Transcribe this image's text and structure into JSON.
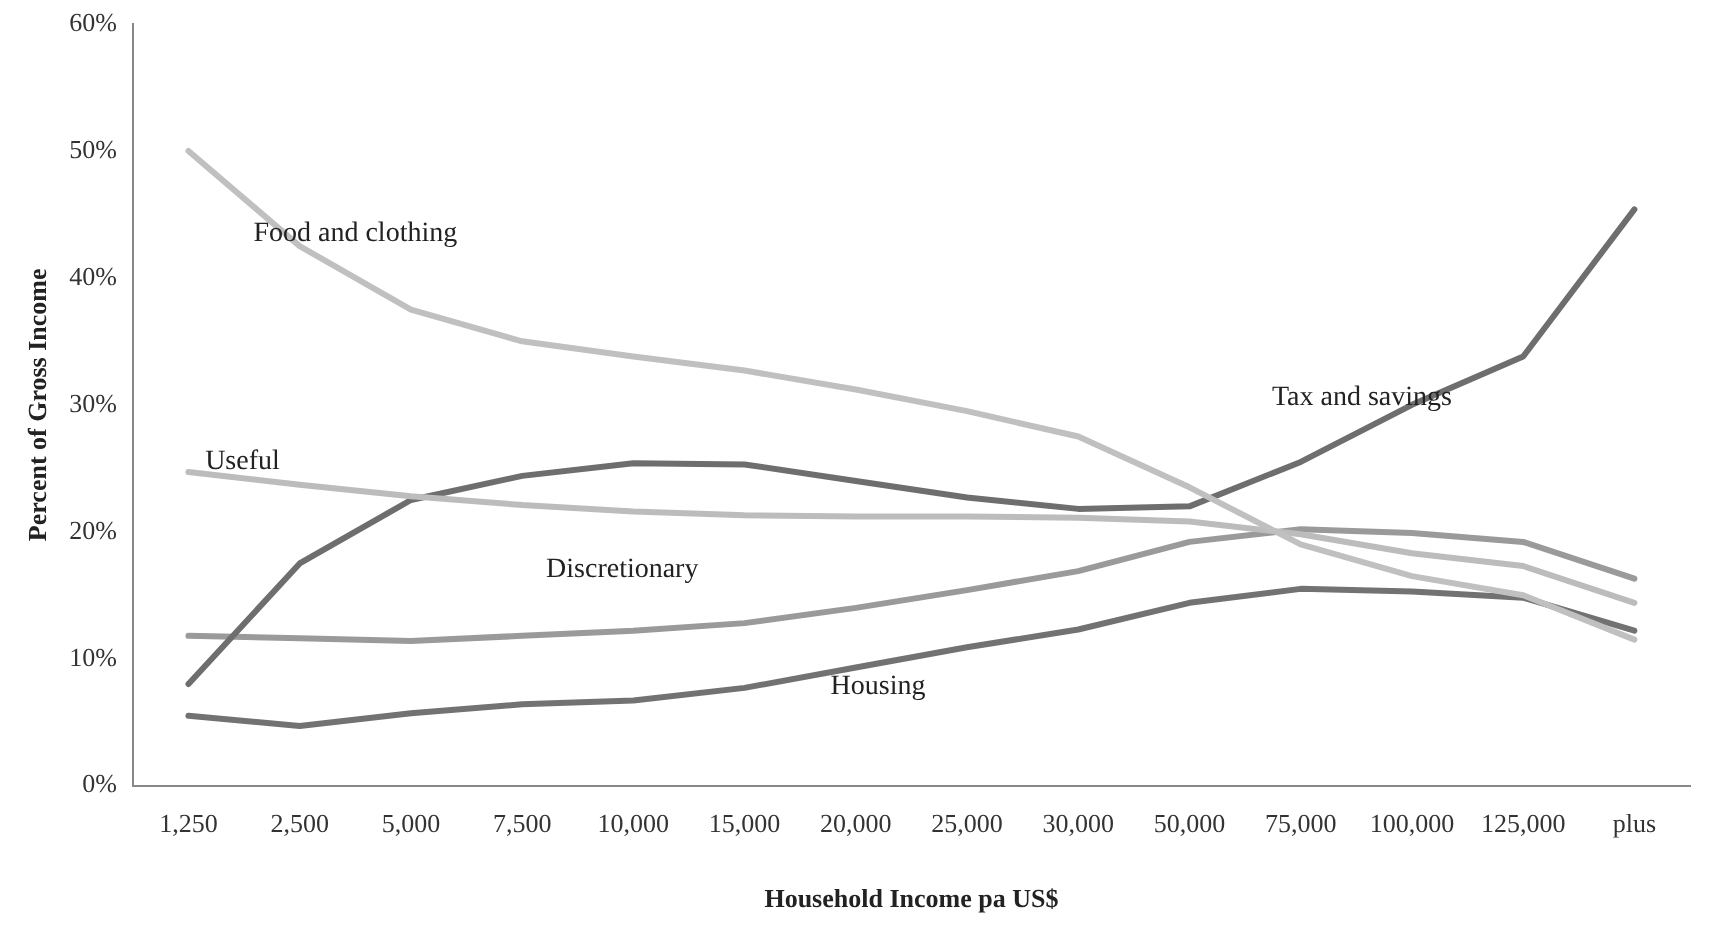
{
  "chart_data": {
    "type": "line",
    "xlabel": "Household Income pa US$",
    "ylabel": "Percent of Gross Income",
    "categories": [
      "1,250",
      "2,500",
      "5,000",
      "7,500",
      "10,000",
      "15,000",
      "20,000",
      "25,000",
      "30,000",
      "50,000",
      "75,000",
      "100,000",
      "125,000",
      "plus"
    ],
    "ylim": [
      0,
      60
    ],
    "yticks": [
      {
        "value": 0,
        "label": "0%"
      },
      {
        "value": 10,
        "label": "10%"
      },
      {
        "value": 20,
        "label": "20%"
      },
      {
        "value": 30,
        "label": "30%"
      },
      {
        "value": 40,
        "label": "40%"
      },
      {
        "value": 50,
        "label": "50%"
      },
      {
        "value": 60,
        "label": "60%"
      }
    ],
    "grid": false,
    "legend": false,
    "marker": "none",
    "line_style": "solid",
    "series": [
      {
        "name": "Food and clothing",
        "color": "#c0c0c0",
        "values": [
          50,
          42.5,
          37.5,
          35,
          33.8,
          32.7,
          31.2,
          29.5,
          27.5,
          23.5,
          19,
          16.5,
          15,
          11.5
        ]
      },
      {
        "name": "Useful",
        "color": "#bcbcbc",
        "values": [
          24.7,
          23.7,
          22.8,
          22.1,
          21.6,
          21.3,
          21.2,
          21.2,
          21.1,
          20.8,
          19.8,
          18.3,
          17.3,
          14.4
        ]
      },
      {
        "name": "Tax and savings",
        "color": "#6e6e6e",
        "values": [
          8,
          17.5,
          22.5,
          24.4,
          25.4,
          25.3,
          24,
          22.7,
          21.8,
          22,
          25.5,
          30,
          33.8,
          45.4
        ]
      },
      {
        "name": "Discretionary",
        "color": "#9a9a9a",
        "values": [
          11.8,
          11.6,
          11.4,
          11.8,
          12.2,
          12.8,
          14,
          15.4,
          16.9,
          19.2,
          20.2,
          19.9,
          19.2,
          16.3
        ]
      },
      {
        "name": "Housing",
        "color": "#727272",
        "values": [
          5.5,
          4.7,
          5.7,
          6.4,
          6.7,
          7.7,
          9.3,
          10.9,
          12.3,
          14.4,
          15.5,
          15.3,
          14.8,
          12.2
        ]
      }
    ]
  }
}
